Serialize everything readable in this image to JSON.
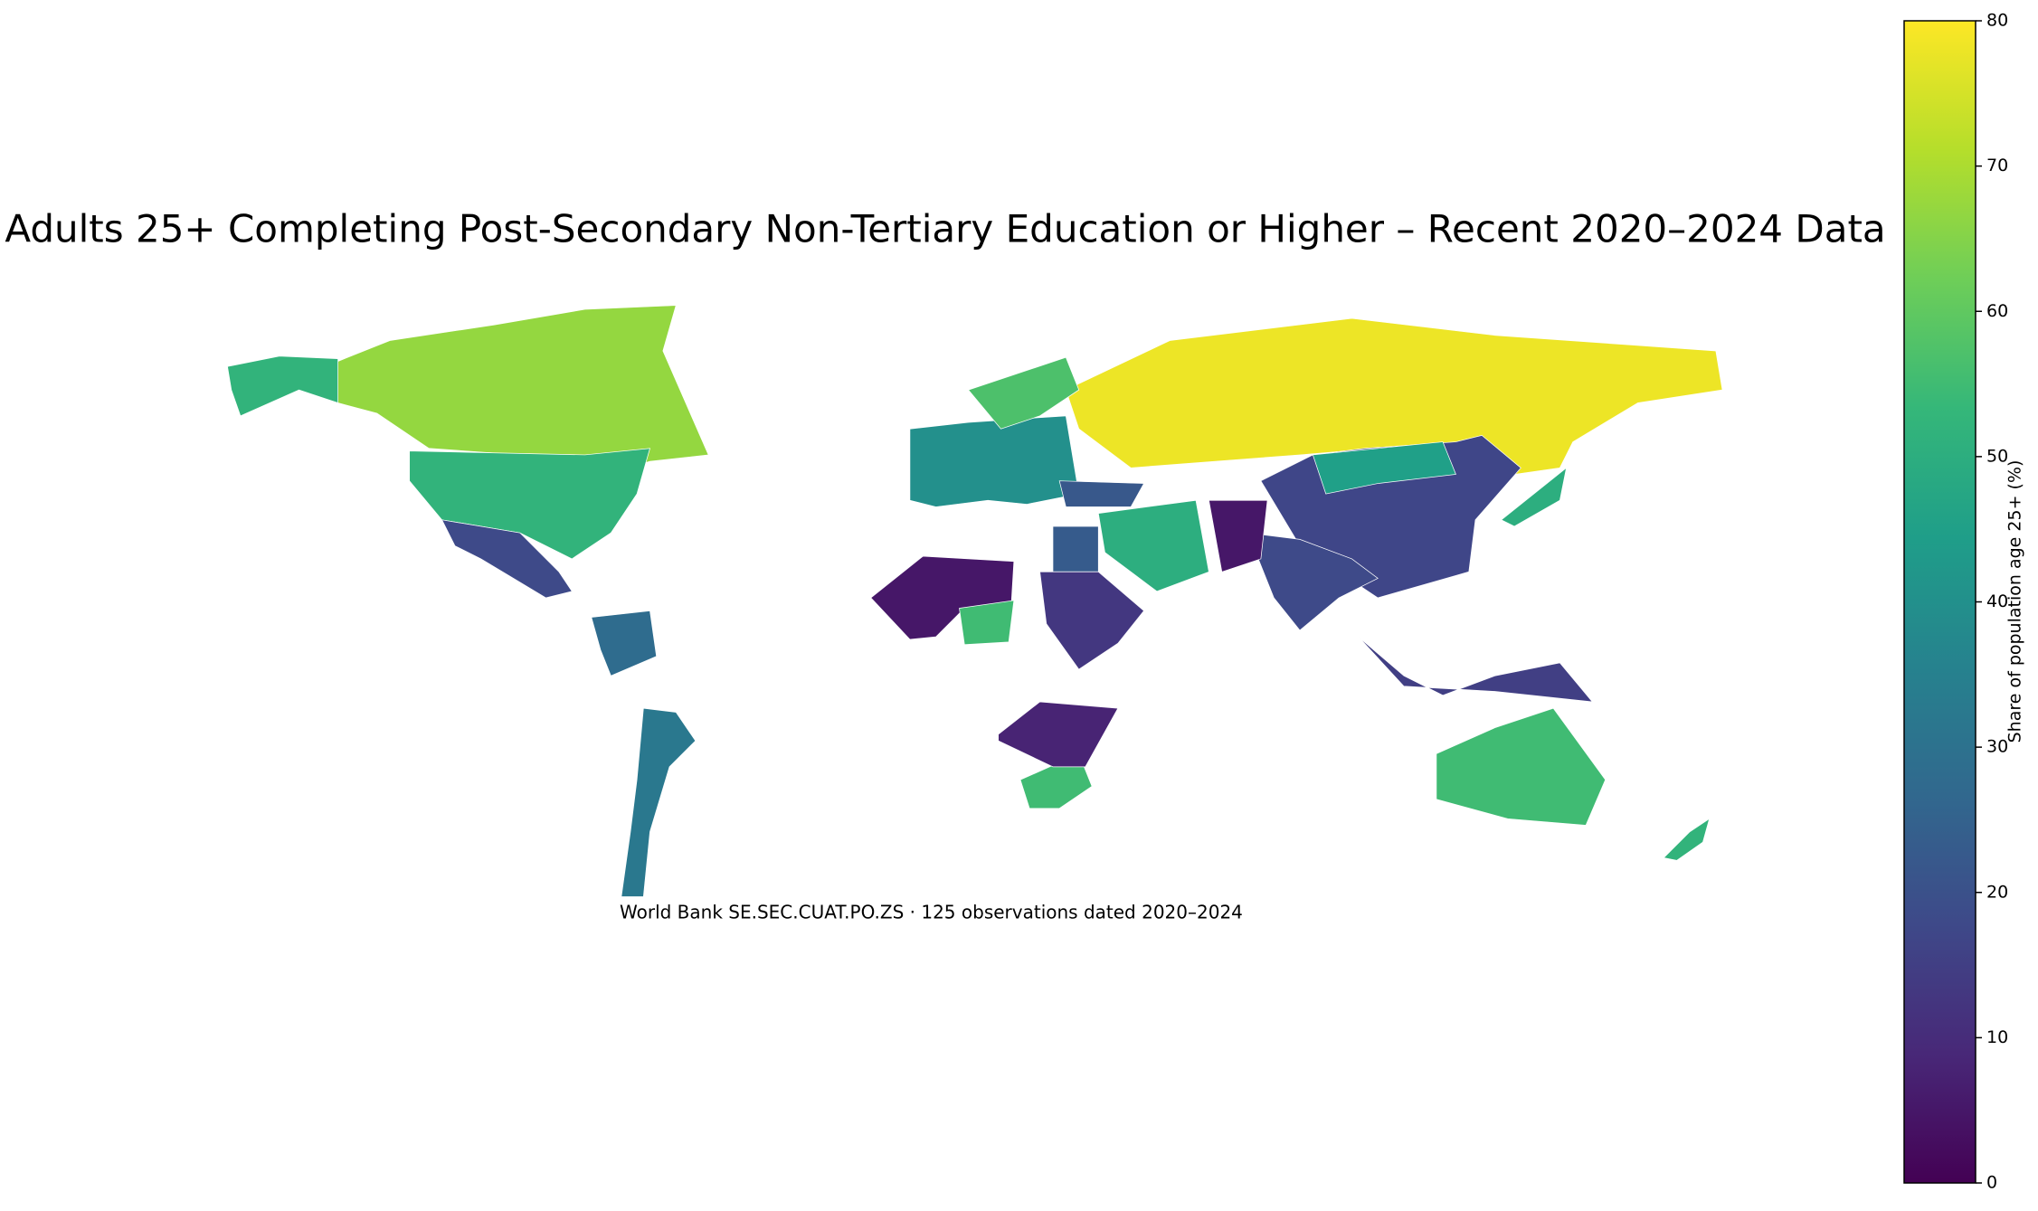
{
  "chart_data": {
    "type": "choropleth",
    "title": "Adults 25+ Completing Post-Secondary Non-Tertiary Education or Higher – Recent 2020–2024 Data",
    "note": "World Bank SE.SEC.CUAT.PO.ZS · 125 observations dated 2020–2024",
    "colorbar_label": "Share of population age 25+ (%)",
    "colormap": "viridis",
    "clim": [
      0,
      80
    ],
    "cticks": [
      0,
      10,
      20,
      30,
      40,
      50,
      60,
      70,
      80
    ],
    "values": [
      67,
      52,
      18,
      28,
      32,
      78,
      40,
      57,
      17,
      45,
      18,
      5,
      55,
      23,
      13,
      50,
      5,
      55,
      8,
      55,
      15,
      50,
      52,
      22
    ]
  }
}
